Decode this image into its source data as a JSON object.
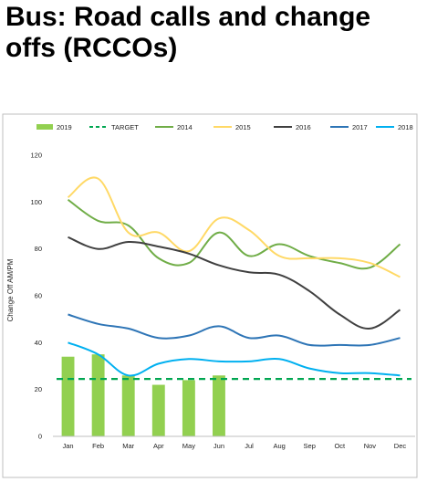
{
  "page": {
    "title": "Bus: Road calls and change offs (RCCOs)"
  },
  "chart_data": {
    "type": "bar+line",
    "ylabel": "Change Off AM/PM",
    "xlabel": "",
    "ylim": [
      0,
      120
    ],
    "yticks": [
      0,
      20,
      40,
      60,
      80,
      100,
      120
    ],
    "grid": false,
    "legend_position": "top",
    "categories": [
      "Jan",
      "Feb",
      "Mar",
      "Apr",
      "May",
      "Jun",
      "Jul",
      "Aug",
      "Sep",
      "Oct",
      "Nov",
      "Dec"
    ],
    "series": [
      {
        "name": "2019",
        "type": "bar",
        "color": "#92d050",
        "values": [
          34,
          35,
          26,
          22,
          24,
          26,
          null,
          null,
          null,
          null,
          null,
          null
        ]
      },
      {
        "name": "TARGET",
        "type": "line",
        "style": "dashed",
        "color": "#00a651",
        "values": [
          24.5,
          24.5,
          24.5,
          24.5,
          24.5,
          24.5,
          24.5,
          24.5,
          24.5,
          24.5,
          24.5,
          24.5
        ]
      },
      {
        "name": "2014",
        "type": "line",
        "color": "#70ad47",
        "values": [
          101,
          92,
          90,
          76,
          74,
          87,
          77,
          82,
          77,
          74,
          72,
          82
        ]
      },
      {
        "name": "2015",
        "type": "line",
        "color": "#ffd966",
        "values": [
          102,
          110,
          87,
          87,
          79,
          93,
          88,
          77,
          76,
          76,
          74,
          68
        ]
      },
      {
        "name": "2016",
        "type": "line",
        "color": "#404040",
        "values": [
          85,
          80,
          83,
          81,
          78,
          73,
          70,
          69,
          62,
          52,
          46,
          54
        ]
      },
      {
        "name": "2017",
        "type": "line",
        "color": "#2e75b6",
        "values": [
          52,
          48,
          46,
          42,
          43,
          47,
          42,
          43,
          39,
          39,
          39,
          42
        ]
      },
      {
        "name": "2018",
        "type": "line",
        "color": "#00b0f0",
        "values": [
          40,
          35,
          26,
          31,
          33,
          32,
          32,
          33,
          29,
          27,
          27,
          26
        ]
      }
    ]
  }
}
